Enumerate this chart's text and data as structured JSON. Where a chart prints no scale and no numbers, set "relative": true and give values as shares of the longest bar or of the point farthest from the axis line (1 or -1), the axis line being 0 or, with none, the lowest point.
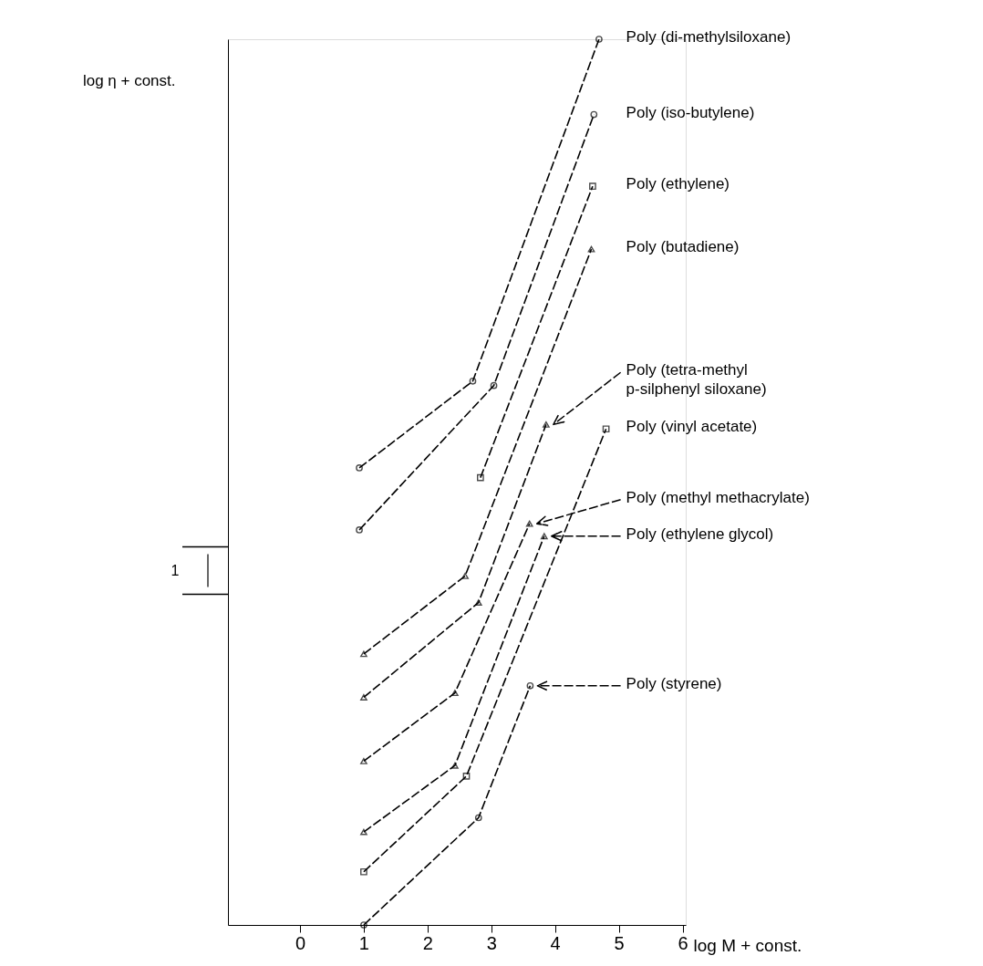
{
  "chart_data": {
    "type": "line",
    "relative": true,
    "ylabel": "log η + const.",
    "xlabel": "log M + const.",
    "xlim": [
      -1.13,
      6.05
    ],
    "xticks": [
      0,
      1,
      2,
      3,
      4,
      5,
      6
    ],
    "grid": false,
    "legend": "right",
    "line_style": "dashed",
    "annotations": [
      "1"
    ],
    "series": [
      {
        "name": "Poly (di-methylsiloxane)",
        "color": "#000000",
        "marker": "circle",
        "x": [
          0.93,
          2.71,
          4.69
        ],
        "values": [
          0.516,
          0.614,
          1.0
        ]
      },
      {
        "name": "Poly (iso-butylene)",
        "color": "#000000",
        "marker": "circle",
        "x": [
          0.93,
          3.04,
          4.61
        ],
        "values": [
          0.446,
          0.609,
          0.915
        ]
      },
      {
        "name": "Poly (ethylene)",
        "color": "#000000",
        "marker": "square",
        "x": [
          2.83,
          4.59
        ],
        "values": [
          0.505,
          0.834
        ]
      },
      {
        "name": "Poly (butadiene)",
        "color": "#000000",
        "marker": "triangle",
        "x": [
          1.0,
          2.59,
          4.57
        ],
        "values": [
          0.306,
          0.394,
          0.763
        ]
      },
      {
        "name": "Poly (tetra-methyl\np-silphenyl siloxane)",
        "color": "#000000",
        "marker": "triangle",
        "x": [
          1.0,
          2.8,
          3.86
        ],
        "values": [
          0.257,
          0.364,
          0.565
        ]
      },
      {
        "name": "Poly (vinyl acetate)",
        "color": "#000000",
        "marker": "square",
        "x": [
          1.0,
          2.61,
          4.8
        ],
        "values": [
          0.06,
          0.168,
          0.56
        ]
      },
      {
        "name": "Poly (methyl methacrylate)",
        "color": "#000000",
        "marker": "triangle",
        "x": [
          1.0,
          2.43,
          3.6
        ],
        "values": [
          0.185,
          0.262,
          0.453
        ]
      },
      {
        "name": "Poly (ethylene glycol)",
        "color": "#000000",
        "marker": "triangle",
        "x": [
          1.0,
          2.43,
          3.83
        ],
        "values": [
          0.105,
          0.18,
          0.439
        ]
      },
      {
        "name": "Poly (styrene)",
        "color": "#000000",
        "marker": "circle",
        "x": [
          1.0,
          2.8,
          3.61
        ],
        "values": [
          0.0,
          0.121,
          0.27
        ]
      }
    ]
  }
}
